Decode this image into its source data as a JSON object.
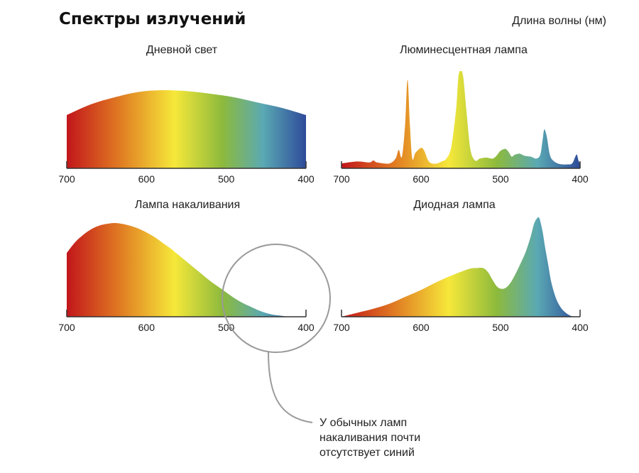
{
  "header": {
    "title": "Спектры излучений",
    "unit_label": "Длина волны (нм)"
  },
  "callout": {
    "lines": [
      "У обычных ламп",
      "накаливания почти",
      "отсутствует синий"
    ]
  },
  "colors": {
    "spectrum_red": "#c2161b",
    "spectrum_orange": "#e07a22",
    "spectrum_yellow": "#f6e83a",
    "spectrum_green": "#8dba3c",
    "spectrum_teal": "#5aa9b3",
    "spectrum_blue": "#2e4b9a",
    "axis": "#333333",
    "callout_circle": "#9a9a9a"
  },
  "chart_data": [
    {
      "type": "area",
      "title": "Дневной свет",
      "x_ticks": [
        "700",
        "600",
        "500",
        "400"
      ],
      "xlim": [
        700,
        400
      ],
      "ylim": [
        0,
        1
      ],
      "x": [
        700,
        670,
        640,
        610,
        580,
        550,
        520,
        490,
        460,
        430,
        400
      ],
      "y": [
        0.6,
        0.72,
        0.8,
        0.86,
        0.88,
        0.87,
        0.84,
        0.8,
        0.74,
        0.68,
        0.6
      ]
    },
    {
      "type": "area",
      "title": "Люминесцентная лампа",
      "x_ticks": [
        "700",
        "600",
        "500",
        "400"
      ],
      "xlim": [
        700,
        400
      ],
      "ylim": [
        0,
        1
      ],
      "x": [
        700,
        680,
        665,
        660,
        655,
        640,
        632,
        628,
        624,
        620,
        617,
        614,
        611,
        607,
        600,
        596,
        591,
        586,
        580,
        574,
        568,
        562,
        556,
        553,
        550,
        547,
        543,
        538,
        532,
        526,
        518,
        510,
        505,
        500,
        494,
        490,
        486,
        482,
        476,
        470,
        462,
        455,
        450,
        447,
        445,
        442,
        438,
        434,
        428,
        422,
        416,
        410,
        406,
        404,
        402,
        400
      ],
      "y": [
        0.05,
        0.07,
        0.06,
        0.08,
        0.06,
        0.05,
        0.1,
        0.19,
        0.12,
        0.45,
        0.91,
        0.45,
        0.1,
        0.16,
        0.21,
        0.18,
        0.08,
        0.05,
        0.05,
        0.07,
        0.1,
        0.22,
        0.6,
        0.94,
        1.0,
        0.94,
        0.6,
        0.2,
        0.08,
        0.1,
        0.11,
        0.1,
        0.13,
        0.18,
        0.2,
        0.17,
        0.12,
        0.14,
        0.15,
        0.13,
        0.12,
        0.1,
        0.14,
        0.3,
        0.4,
        0.33,
        0.14,
        0.08,
        0.05,
        0.04,
        0.04,
        0.05,
        0.12,
        0.14,
        0.08,
        0.05
      ]
    },
    {
      "type": "area",
      "title": "Лампа накаливания",
      "x_ticks": [
        "700",
        "600",
        "500",
        "400"
      ],
      "xlim": [
        700,
        400
      ],
      "ylim": [
        0,
        1
      ],
      "x": [
        700,
        690,
        680,
        670,
        660,
        650,
        640,
        630,
        620,
        610,
        600,
        590,
        580,
        570,
        560,
        550,
        540,
        530,
        520,
        510,
        500,
        490,
        480,
        470,
        460,
        450,
        440,
        430,
        420,
        410,
        400
      ],
      "y": [
        0.68,
        0.79,
        0.87,
        0.93,
        0.97,
        0.99,
        1.0,
        0.99,
        0.97,
        0.94,
        0.9,
        0.85,
        0.79,
        0.73,
        0.66,
        0.59,
        0.52,
        0.45,
        0.38,
        0.32,
        0.26,
        0.2,
        0.15,
        0.11,
        0.07,
        0.04,
        0.02,
        0.01,
        0.0,
        0.0,
        0.0
      ]
    },
    {
      "type": "area",
      "title": "Диодная лампа",
      "x_ticks": [
        "700",
        "600",
        "500",
        "400"
      ],
      "xlim": [
        700,
        400
      ],
      "ylim": [
        0,
        1
      ],
      "x": [
        700,
        680,
        660,
        640,
        620,
        600,
        580,
        560,
        540,
        530,
        522,
        516,
        510,
        504,
        498,
        492,
        486,
        480,
        474,
        468,
        462,
        458,
        455,
        452,
        450,
        447,
        444,
        440,
        436,
        430,
        424,
        418,
        412,
        406,
        400
      ],
      "y": [
        0.0,
        0.04,
        0.08,
        0.13,
        0.2,
        0.27,
        0.35,
        0.42,
        0.48,
        0.49,
        0.49,
        0.45,
        0.37,
        0.3,
        0.28,
        0.3,
        0.36,
        0.45,
        0.55,
        0.66,
        0.81,
        0.93,
        0.98,
        1.0,
        0.96,
        0.85,
        0.7,
        0.52,
        0.34,
        0.18,
        0.09,
        0.04,
        0.01,
        0.0,
        0.0
      ]
    }
  ]
}
